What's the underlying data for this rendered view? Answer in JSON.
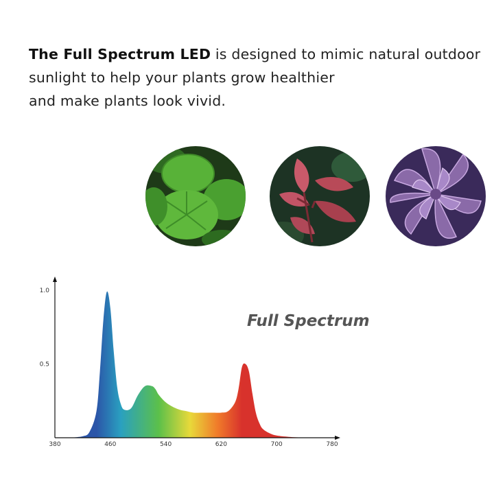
{
  "intro": {
    "bold_text": "The Full Spectrum LED",
    "line1_rest": " is designed to mimic natural outdoor",
    "line2": "sunlight to help your plants grow healthier",
    "line3": "and make plants look vivid."
  },
  "plants": [
    {
      "icon": "green-leaf-plant-photo"
    },
    {
      "icon": "red-leaf-plant-photo"
    },
    {
      "icon": "purple-succulent-photo"
    }
  ],
  "chart_data": {
    "type": "area",
    "title": "Full Spectrum",
    "xlabel": "",
    "ylabel": "",
    "xlim": [
      380,
      780
    ],
    "ylim": [
      0,
      1.0
    ],
    "x_ticks": [
      "380",
      "460",
      "540",
      "620",
      "700",
      "780"
    ],
    "y_ticks": [
      "0.5",
      "1.0"
    ],
    "grid": false,
    "legend": "none",
    "x": [
      400,
      420,
      430,
      440,
      445,
      450,
      455,
      460,
      465,
      470,
      475,
      480,
      490,
      500,
      510,
      520,
      525,
      530,
      540,
      550,
      560,
      570,
      580,
      590,
      600,
      610,
      620,
      630,
      640,
      645,
      650,
      655,
      660,
      665,
      670,
      675,
      680,
      690,
      700,
      720,
      740
    ],
    "values": [
      0.0,
      0.01,
      0.04,
      0.18,
      0.45,
      0.8,
      0.99,
      0.88,
      0.58,
      0.34,
      0.23,
      0.19,
      0.2,
      0.29,
      0.35,
      0.35,
      0.33,
      0.29,
      0.24,
      0.21,
      0.19,
      0.18,
      0.17,
      0.17,
      0.17,
      0.17,
      0.17,
      0.18,
      0.24,
      0.33,
      0.48,
      0.5,
      0.45,
      0.3,
      0.17,
      0.1,
      0.06,
      0.03,
      0.015,
      0.005,
      0.0
    ],
    "colors": {
      "blue": "#2b55a8",
      "cyan": "#2aa0c0",
      "green": "#5cc04a",
      "yellow": "#e8d93a",
      "orange": "#f07a2a",
      "red": "#d8322c",
      "axis": "#111111"
    }
  }
}
